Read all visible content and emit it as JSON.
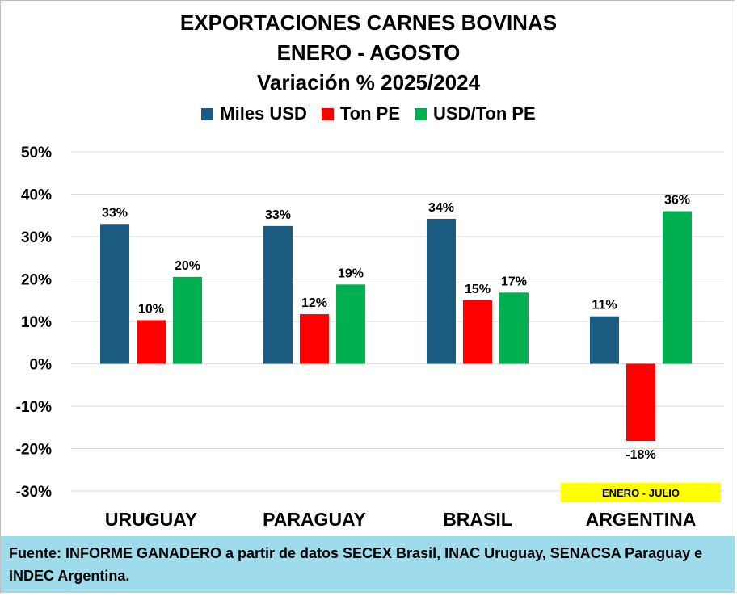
{
  "chart_data": {
    "type": "bar",
    "title": "EXPORTACIONES CARNES BOVINAS",
    "subtitle_lines": [
      "ENERO - AGOSTO",
      "Variación % 2025/2024"
    ],
    "categories": [
      "URUGUAY",
      "PARAGUAY",
      "BRASIL",
      "ARGENTINA"
    ],
    "series": [
      {
        "name": "Miles USD",
        "color": "#1b5b82",
        "values": [
          33,
          32.5,
          34.2,
          11.2
        ],
        "labels": [
          "33%",
          "33%",
          "34%",
          "11%"
        ]
      },
      {
        "name": "Ton PE",
        "color": "#ff0000",
        "values": [
          10.3,
          11.7,
          15,
          -18.2
        ],
        "labels": [
          "10%",
          "12%",
          "15%",
          "-18%"
        ]
      },
      {
        "name": "USD/Ton PE",
        "color": "#00b050",
        "values": [
          20.5,
          18.7,
          16.8,
          36
        ],
        "labels": [
          "20%",
          "19%",
          "17%",
          "36%"
        ]
      }
    ],
    "ylim": [
      -30,
      50
    ],
    "yticks": [
      50,
      40,
      30,
      20,
      10,
      0,
      -10,
      -20,
      -30
    ],
    "ytick_labels": [
      "50%",
      "40%",
      "30%",
      "20%",
      "10%",
      "0%",
      "-10%",
      "-20%",
      "-30%"
    ],
    "grid": true,
    "legend_position": "top-center",
    "annotation": {
      "text": "ENERO - JULIO",
      "category": "ARGENTINA",
      "color": "#ffff00"
    }
  },
  "source_note": "Fuente: INFORME GANADERO a partir de datos SECEX Brasil, INAC Uruguay, SENACSA Paraguay e INDEC Argentina."
}
